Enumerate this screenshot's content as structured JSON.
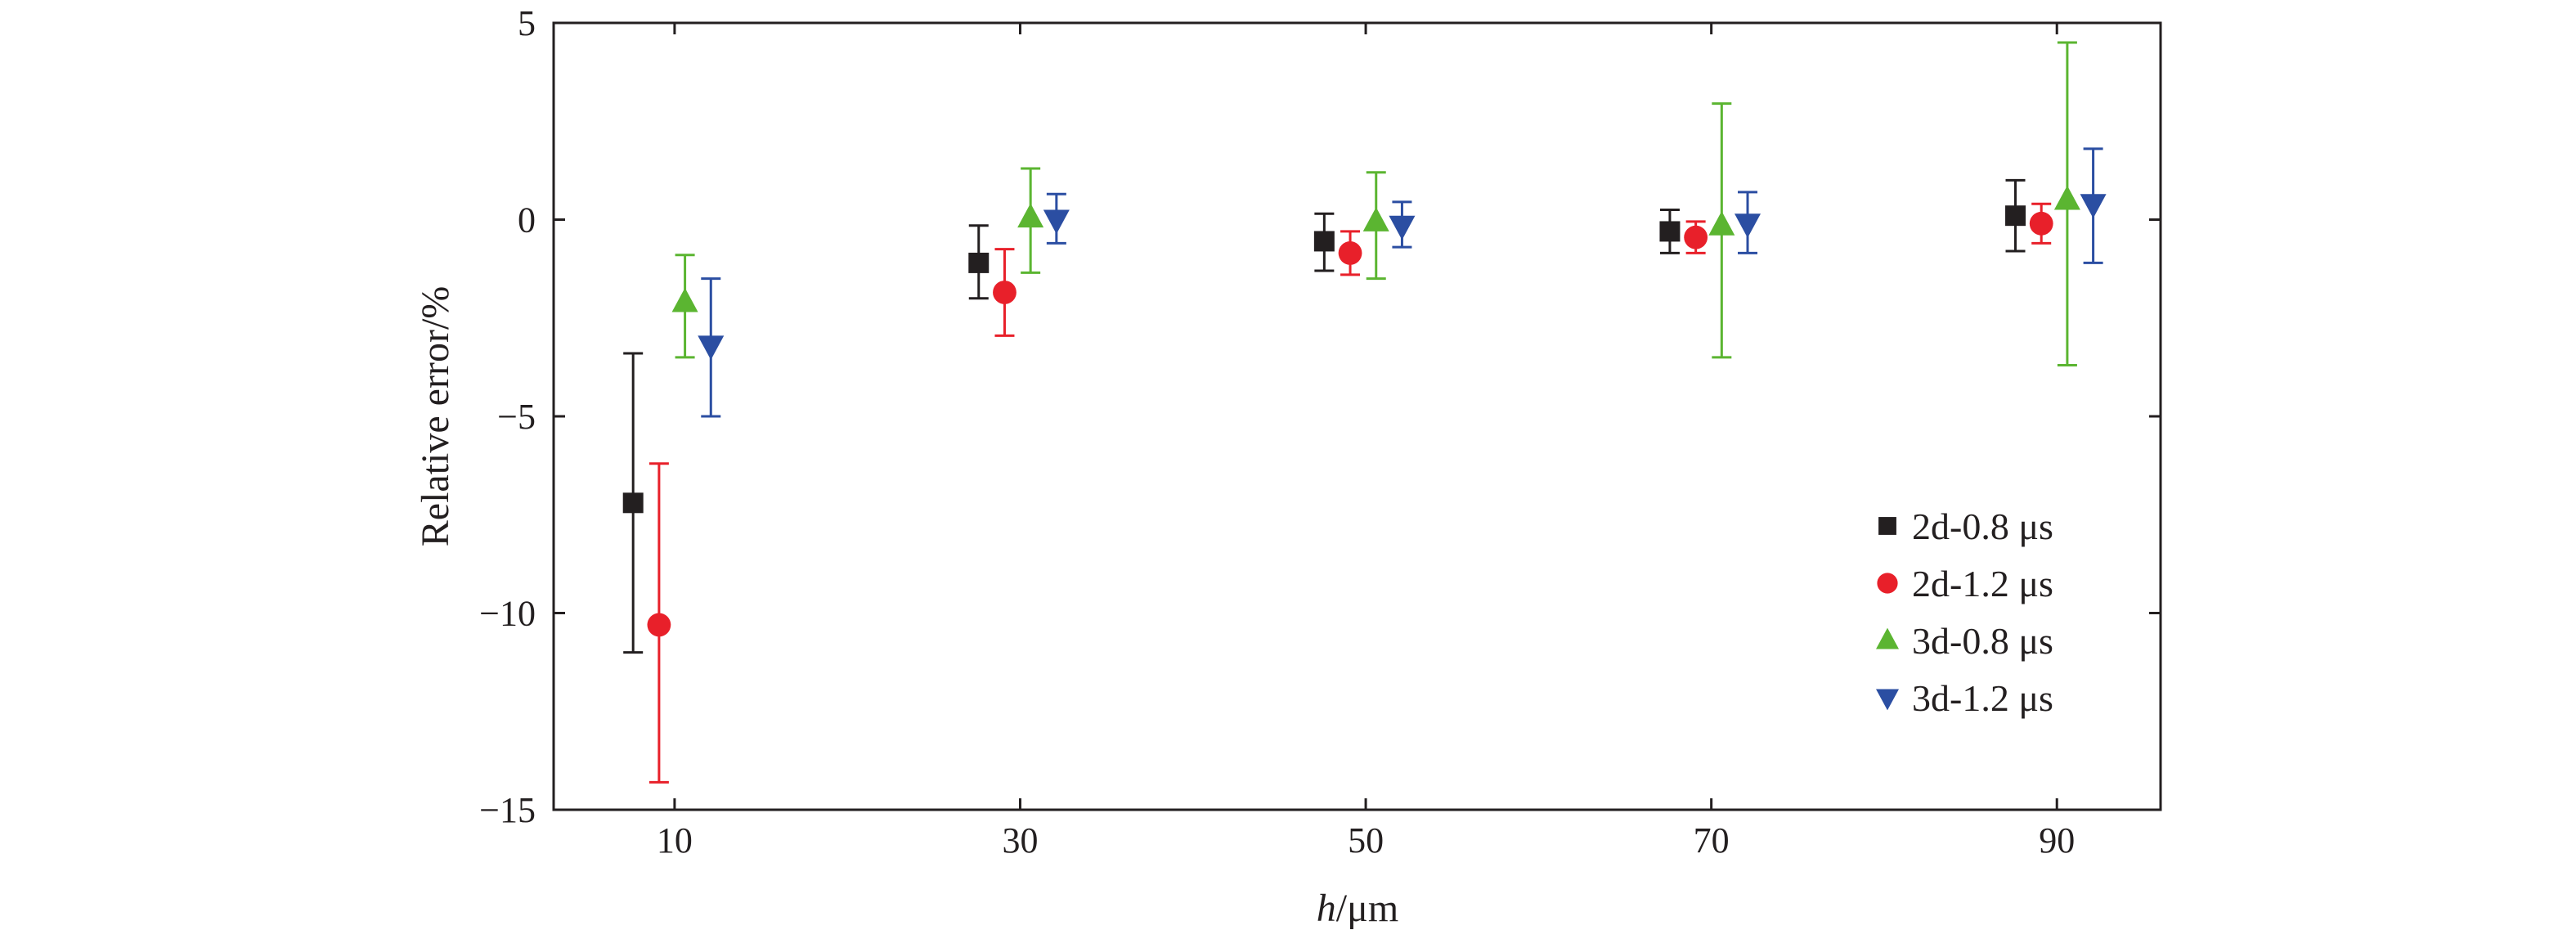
{
  "chart_data": {
    "type": "scatter",
    "xlabel_italic": "h",
    "xlabel_rest": "/μm",
    "ylabel": "Relative error/%",
    "xlim": [
      3,
      96
    ],
    "ylim": [
      -15,
      5
    ],
    "xticks": [
      10,
      30,
      50,
      70,
      90
    ],
    "yticks": [
      -15,
      -10,
      -5,
      0,
      5
    ],
    "ytick_labels": [
      "−15",
      "−10",
      "−5",
      "0",
      "5"
    ],
    "legend_position": "lower-right",
    "grid": false,
    "series": [
      {
        "name": "2d-0.8 μs",
        "marker": "square",
        "color": "#231f20",
        "x": [
          7.6,
          27.6,
          47.6,
          67.6,
          87.6
        ],
        "y": [
          -7.2,
          -1.1,
          -0.55,
          -0.3,
          0.1
        ],
        "err_low": [
          -11.0,
          -2.0,
          -1.3,
          -0.85,
          -0.8
        ],
        "err_high": [
          -3.4,
          -0.15,
          0.15,
          0.25,
          1.0
        ]
      },
      {
        "name": "2d-1.2 μs",
        "marker": "circle",
        "color": "#e8202a",
        "x": [
          9.1,
          29.1,
          49.1,
          69.1,
          89.1
        ],
        "y": [
          -10.3,
          -1.85,
          -0.85,
          -0.45,
          -0.1
        ],
        "err_low": [
          -14.3,
          -2.95,
          -1.4,
          -0.85,
          -0.6
        ],
        "err_high": [
          -6.2,
          -0.75,
          -0.3,
          -0.05,
          0.4
        ]
      },
      {
        "name": "3d-0.8 μs",
        "marker": "triangle-up",
        "color": "#5bb531",
        "x": [
          10.6,
          30.6,
          50.6,
          70.6,
          90.6
        ],
        "y": [
          -2.1,
          0.05,
          -0.05,
          -0.15,
          0.5
        ],
        "err_low": [
          -3.5,
          -1.35,
          -1.5,
          -3.5,
          -3.7
        ],
        "err_high": [
          -0.9,
          1.3,
          1.2,
          2.95,
          4.5
        ]
      },
      {
        "name": "3d-1.2 μs",
        "marker": "triangle-down",
        "color": "#2b4ea2",
        "x": [
          12.1,
          32.1,
          52.1,
          72.1,
          92.1
        ],
        "y": [
          -3.2,
          0.0,
          -0.15,
          -0.1,
          0.4
        ],
        "err_low": [
          -5.0,
          -0.6,
          -0.7,
          -0.85,
          -1.1
        ],
        "err_high": [
          -1.5,
          0.65,
          0.45,
          0.7,
          1.8
        ]
      }
    ]
  }
}
